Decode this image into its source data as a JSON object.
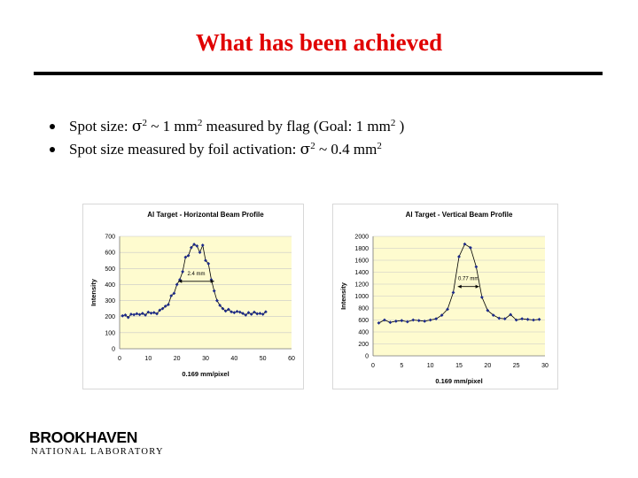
{
  "slide": {
    "title": "What has been achieved",
    "bullets": [
      {
        "before": "Spot size: ",
        "sigma": "σ",
        "sup1": "2",
        "mid": " ~ 1 mm",
        "sup2": "2",
        "after": " measured by flag (Goal: 1 mm",
        "sup3": "2",
        "tail": " )"
      },
      {
        "before": "Spot size measured by foil activation: ",
        "sigma": "σ",
        "sup1": "2",
        "mid": " ~ 0.4 mm",
        "sup2": "2"
      }
    ]
  },
  "logo": {
    "line1": "BROOKHAVEN",
    "line2": "NATIONAL LABORATORY"
  },
  "chart_data": [
    {
      "type": "scatter",
      "title": "Al Target - Horizontal Beam Profile",
      "xlabel": "0.169 mm/pixel",
      "ylabel": "Intensity",
      "xlim": [
        0,
        60
      ],
      "ylim": [
        0,
        700
      ],
      "xticks": [
        0,
        10,
        20,
        30,
        40,
        50,
        60
      ],
      "yticks": [
        0,
        100,
        200,
        300,
        400,
        500,
        600,
        700
      ],
      "grid": true,
      "plot_background": "#fefbcf",
      "marker_color": "#1c2a8a",
      "annotation": {
        "text": "2.4 mm",
        "y": 420,
        "x_from": 20.5,
        "x_to": 33
      },
      "x": [
        1,
        2,
        3,
        4,
        5,
        6,
        7,
        8,
        9,
        10,
        11,
        12,
        13,
        14,
        15,
        16,
        17,
        18,
        19,
        20,
        21,
        22,
        23,
        24,
        25,
        26,
        27,
        28,
        29,
        30,
        31,
        32,
        33,
        34,
        35,
        36,
        37,
        38,
        39,
        40,
        41,
        42,
        43,
        44,
        45,
        46,
        47,
        48,
        49,
        50,
        51
      ],
      "y": [
        205,
        210,
        195,
        215,
        212,
        218,
        213,
        220,
        210,
        228,
        222,
        225,
        218,
        240,
        250,
        265,
        275,
        330,
        345,
        400,
        430,
        480,
        570,
        580,
        630,
        650,
        640,
        600,
        645,
        550,
        530,
        430,
        360,
        300,
        270,
        250,
        235,
        245,
        230,
        225,
        232,
        228,
        220,
        210,
        225,
        215,
        228,
        218,
        220,
        215,
        230
      ]
    },
    {
      "type": "scatter",
      "title": "Al Target - Vertical Beam Profile",
      "xlabel": "0.169 mm/pixel",
      "ylabel": "Intensity",
      "xlim": [
        0,
        30
      ],
      "ylim": [
        0,
        2000
      ],
      "xticks": [
        0,
        5,
        10,
        15,
        20,
        25,
        30
      ],
      "yticks": [
        0,
        200,
        400,
        600,
        800,
        1000,
        1200,
        1400,
        1600,
        1800,
        2000
      ],
      "grid": true,
      "plot_background": "#fefbcf",
      "marker_color": "#1c2a8a",
      "annotation": {
        "text": "0.77 mm",
        "y": 1160,
        "x_from": 14.8,
        "x_to": 18.5
      },
      "x": [
        1,
        2,
        3,
        4,
        5,
        6,
        7,
        8,
        9,
        10,
        11,
        12,
        13,
        14,
        15,
        16,
        17,
        18,
        19,
        20,
        21,
        22,
        23,
        24,
        25,
        26,
        27,
        28,
        29
      ],
      "y": [
        550,
        600,
        560,
        580,
        590,
        570,
        600,
        590,
        580,
        600,
        620,
        680,
        780,
        1060,
        1660,
        1870,
        1810,
        1490,
        980,
        760,
        680,
        630,
        620,
        690,
        600,
        620,
        610,
        600,
        610
      ]
    }
  ]
}
